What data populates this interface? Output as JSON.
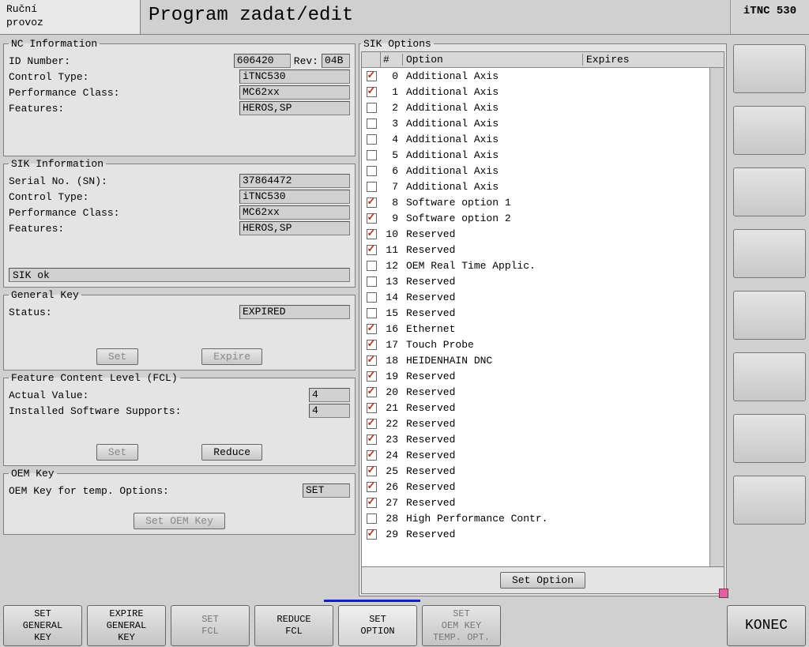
{
  "header": {
    "mode_line1": "Ruční",
    "mode_line2": "provoz",
    "title": "Program zadat/edit",
    "badge": "iTNC 530"
  },
  "nc_info": {
    "legend": "NC Information",
    "id_number_label": "ID Number:",
    "id_number": "606420",
    "rev_label": "Rev:",
    "rev": "04B",
    "control_type_label": "Control Type:",
    "control_type": "iTNC530",
    "perf_class_label": "Performance Class:",
    "perf_class": "MC62xx",
    "features_label": "Features:",
    "features": "HEROS,SP"
  },
  "sik_info": {
    "legend": "SIK Information",
    "serial_label": "Serial No. (SN):",
    "serial": "37864472",
    "control_type_label": "Control Type:",
    "control_type": "iTNC530",
    "perf_class_label": "Performance Class:",
    "perf_class": "MC62xx",
    "features_label": "Features:",
    "features": "HEROS,SP",
    "status": "SIK ok"
  },
  "general_key": {
    "legend": "General Key",
    "status_label": "Status:",
    "status": "EXPIRED",
    "set_btn": "Set",
    "expire_btn": "Expire"
  },
  "fcl": {
    "legend": "Feature Content Level (FCL)",
    "actual_label": "Actual Value:",
    "actual": "4",
    "supports_label": "Installed Software Supports:",
    "supports": "4",
    "set_btn": "Set",
    "reduce_btn": "Reduce"
  },
  "oem_key": {
    "legend": "OEM Key",
    "label": "OEM Key for temp. Options:",
    "value": "SET",
    "btn": "Set OEM Key"
  },
  "sik_options": {
    "legend": "SIK Options",
    "col_num": "#",
    "col_option": "Option",
    "col_expires": "Expires",
    "set_option_btn": "Set Option",
    "rows": [
      {
        "n": 0,
        "c": true,
        "t": "Additional Axis"
      },
      {
        "n": 1,
        "c": true,
        "t": "Additional Axis"
      },
      {
        "n": 2,
        "c": false,
        "t": "Additional Axis"
      },
      {
        "n": 3,
        "c": false,
        "t": "Additional Axis"
      },
      {
        "n": 4,
        "c": false,
        "t": "Additional Axis"
      },
      {
        "n": 5,
        "c": false,
        "t": "Additional Axis"
      },
      {
        "n": 6,
        "c": false,
        "t": "Additional Axis"
      },
      {
        "n": 7,
        "c": false,
        "t": "Additional Axis"
      },
      {
        "n": 8,
        "c": true,
        "t": "Software option 1"
      },
      {
        "n": 9,
        "c": true,
        "t": "Software option 2"
      },
      {
        "n": 10,
        "c": true,
        "t": "Reserved"
      },
      {
        "n": 11,
        "c": true,
        "t": "Reserved"
      },
      {
        "n": 12,
        "c": false,
        "t": "OEM Real Time Applic."
      },
      {
        "n": 13,
        "c": false,
        "t": "Reserved"
      },
      {
        "n": 14,
        "c": false,
        "t": "Reserved"
      },
      {
        "n": 15,
        "c": false,
        "t": "Reserved"
      },
      {
        "n": 16,
        "c": true,
        "t": "Ethernet"
      },
      {
        "n": 17,
        "c": true,
        "t": "Touch Probe"
      },
      {
        "n": 18,
        "c": true,
        "t": "HEIDENHAIN DNC"
      },
      {
        "n": 19,
        "c": true,
        "t": "Reserved"
      },
      {
        "n": 20,
        "c": true,
        "t": "Reserved"
      },
      {
        "n": 21,
        "c": true,
        "t": "Reserved"
      },
      {
        "n": 22,
        "c": true,
        "t": "Reserved"
      },
      {
        "n": 23,
        "c": true,
        "t": "Reserved"
      },
      {
        "n": 24,
        "c": true,
        "t": "Reserved"
      },
      {
        "n": 25,
        "c": true,
        "t": "Reserved"
      },
      {
        "n": 26,
        "c": true,
        "t": "Reserved"
      },
      {
        "n": 27,
        "c": true,
        "t": "Reserved"
      },
      {
        "n": 28,
        "c": false,
        "t": "High Performance Contr."
      },
      {
        "n": 29,
        "c": true,
        "t": "Reserved"
      }
    ]
  },
  "softkeys": {
    "k0": "SET\nGENERAL\nKEY",
    "k1": "EXPIRE\nGENERAL\nKEY",
    "k2": "SET\nFCL",
    "k3": "REDUCE\nFCL",
    "k4": "SET\nOPTION",
    "k5": "SET\nOEM KEY\nTEMP. OPT.",
    "k7": "KONEC"
  },
  "colors": {
    "bg": "#d0d0d0",
    "panel": "#e4e4e4",
    "check": "#c03020",
    "bluebar": "#1020d0"
  }
}
